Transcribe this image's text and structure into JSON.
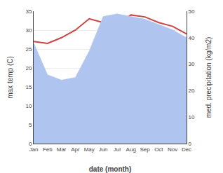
{
  "chart_data": {
    "type": "line",
    "categories": [
      "Jan",
      "Feb",
      "Mar",
      "Apr",
      "May",
      "Jun",
      "Jul",
      "Aug",
      "Sep",
      "Oct",
      "Nov",
      "Dec"
    ],
    "series": [
      {
        "type": "area",
        "axis": "y2",
        "color": "#b0c4f0",
        "values": [
          38,
          26,
          24,
          25,
          35,
          48,
          49,
          48,
          47,
          45,
          43,
          40
        ]
      },
      {
        "type": "line",
        "color": "#cc4444",
        "values": [
          27,
          26.5,
          28,
          30,
          33,
          32,
          31.5,
          34,
          33.5,
          32,
          31,
          29
        ]
      }
    ],
    "xlabel": "date (month)",
    "ylabel": "max temp (C)",
    "y2label": "med. precipitation (kg/m2)",
    "ylim": [
      0,
      35
    ],
    "yticks": [
      0,
      5,
      10,
      15,
      20,
      25,
      30,
      35
    ],
    "y2lim": [
      0,
      50
    ],
    "y2ticks": [
      0,
      10,
      20,
      30,
      40,
      50
    ],
    "grid": true
  }
}
